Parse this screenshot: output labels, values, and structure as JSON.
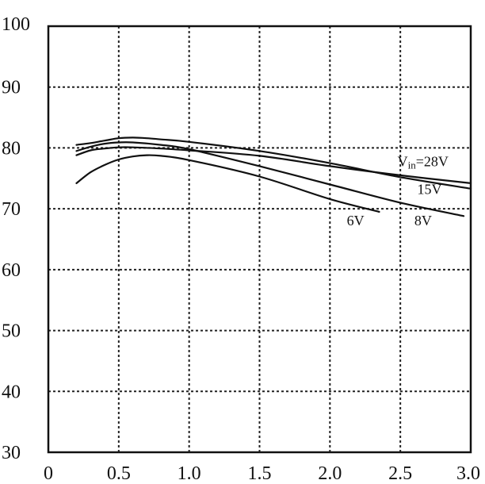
{
  "chart_data": {
    "type": "line",
    "title": "",
    "xlabel": "",
    "ylabel": "",
    "xlim": [
      0,
      3.0
    ],
    "ylim": [
      30,
      100
    ],
    "grid": true,
    "x_ticks": [
      0,
      0.5,
      1.0,
      1.5,
      2.0,
      2.5,
      3.0
    ],
    "x_tick_labels": [
      "0",
      "0.5",
      "1.0",
      "1.5",
      "2.0",
      "2.5",
      "3.0"
    ],
    "y_ticks": [
      30,
      40,
      50,
      60,
      70,
      80,
      90,
      100
    ],
    "y_tick_labels": [
      "30",
      "40",
      "50",
      "60",
      "70",
      "80",
      "90",
      "100"
    ],
    "series": [
      {
        "name": "Vin=28V",
        "label_parts": [
          "V",
          "in",
          "=28V"
        ],
        "x": [
          0.2,
          0.3,
          0.4,
          0.5,
          0.6,
          0.8,
          1.0,
          1.5,
          2.0,
          2.5,
          3.0
        ],
        "y": [
          78.8,
          79.6,
          79.9,
          80.1,
          80.1,
          79.9,
          79.6,
          78.7,
          77.0,
          75.5,
          74.2
        ]
      },
      {
        "name": "15V",
        "x": [
          0.2,
          0.3,
          0.4,
          0.5,
          0.6,
          0.7,
          0.8,
          1.0,
          1.5,
          2.0,
          2.5,
          3.0
        ],
        "y": [
          80.5,
          80.8,
          81.2,
          81.6,
          81.7,
          81.6,
          81.4,
          81.0,
          79.5,
          77.5,
          75.2,
          73.3
        ]
      },
      {
        "name": "8V",
        "x": [
          0.2,
          0.3,
          0.4,
          0.5,
          0.6,
          0.8,
          1.0,
          1.5,
          2.0,
          2.5,
          2.95
        ],
        "y": [
          79.5,
          80.2,
          80.7,
          80.9,
          80.9,
          80.5,
          79.8,
          77.0,
          74.0,
          71.0,
          68.8
        ]
      },
      {
        "name": "6V",
        "x": [
          0.2,
          0.3,
          0.4,
          0.5,
          0.6,
          0.7,
          0.8,
          1.0,
          1.5,
          2.0,
          2.35
        ],
        "y": [
          74.2,
          76.0,
          77.2,
          78.1,
          78.6,
          78.8,
          78.7,
          78.0,
          75.3,
          71.6,
          69.5
        ]
      }
    ],
    "curve_labels": [
      {
        "series": "Vin=28V",
        "x": 2.48,
        "y": 77.0
      },
      {
        "series": "15V",
        "x": 2.62,
        "y": 72.4
      },
      {
        "series": "8V",
        "x": 2.6,
        "y": 67.3
      },
      {
        "series": "6V",
        "x": 2.12,
        "y": 67.3
      }
    ]
  }
}
